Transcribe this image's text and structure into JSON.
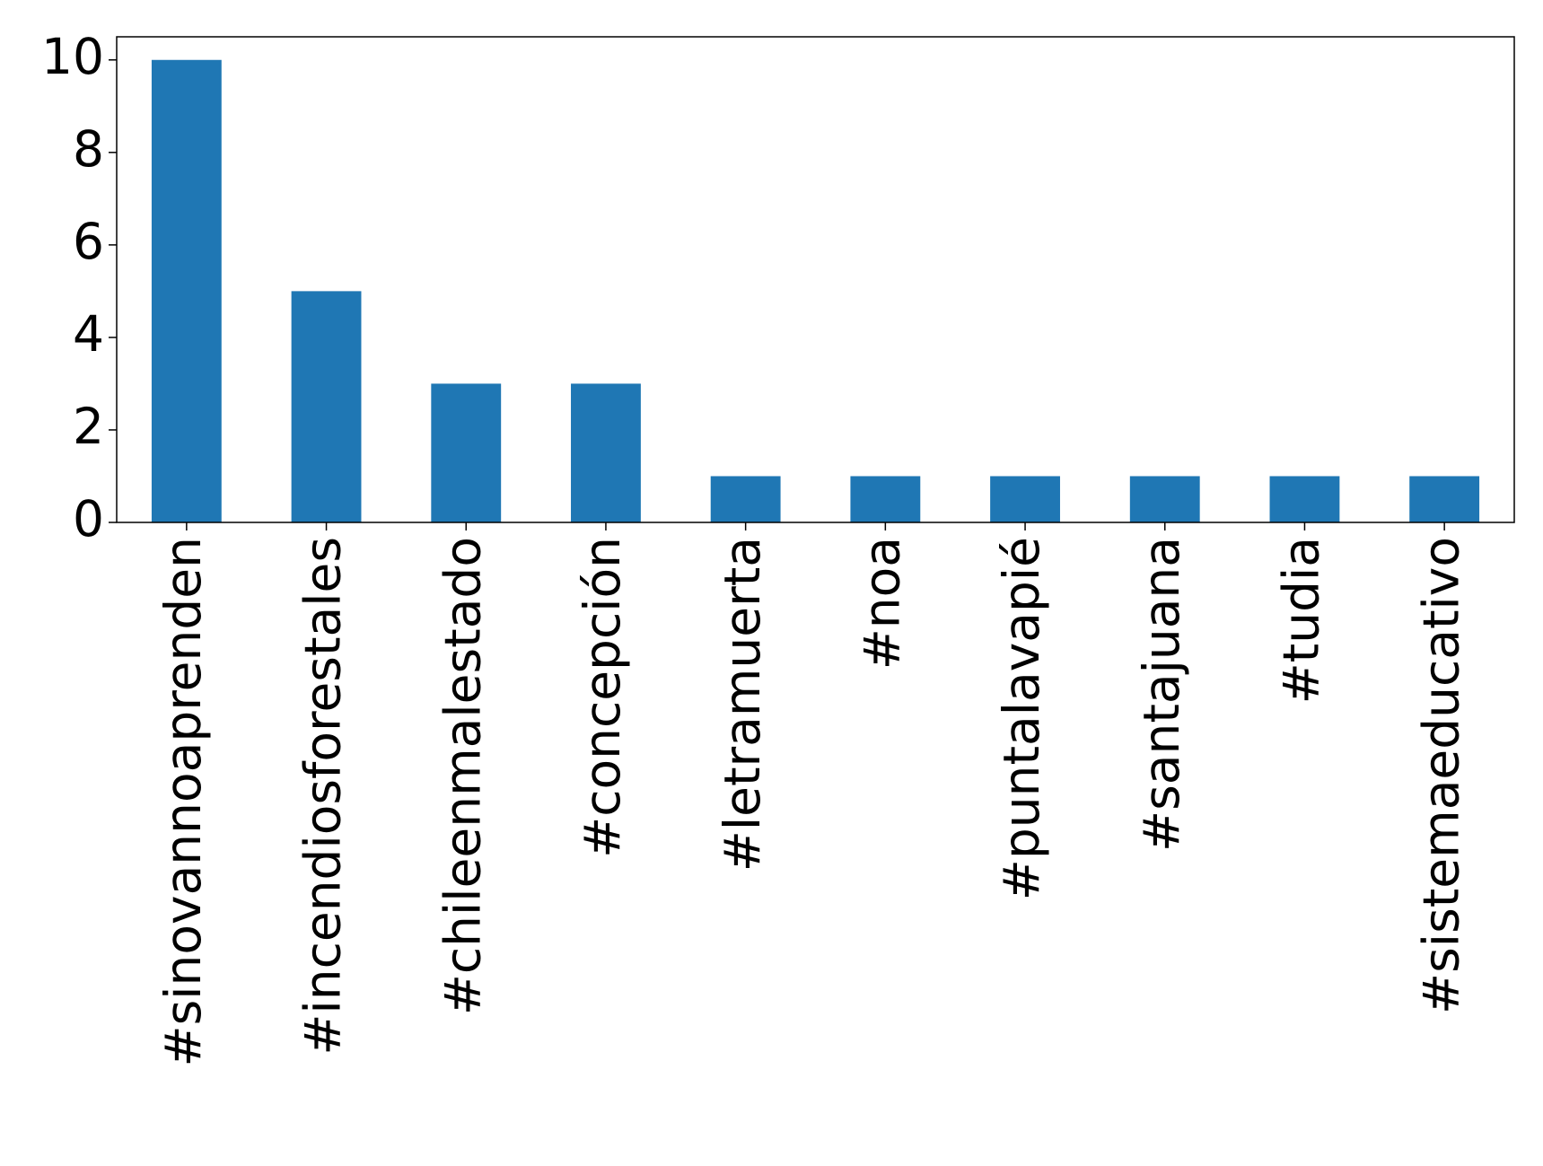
{
  "chart_data": {
    "type": "bar",
    "categories": [
      "#sinovannoaprenden",
      "#incendiosforestales",
      "#chileenmalestado",
      "#concepción",
      "#letramuerta",
      "#noa",
      "#puntalavapié",
      "#santajuana",
      "#tudia",
      "#sistemaeducativo"
    ],
    "values": [
      10,
      5,
      3,
      3,
      1,
      1,
      1,
      1,
      1,
      1
    ],
    "color": "#1f77b4",
    "ylim": [
      0,
      10.5
    ],
    "yticks": [
      0,
      2,
      4,
      6,
      8,
      10
    ],
    "grid": false
  }
}
